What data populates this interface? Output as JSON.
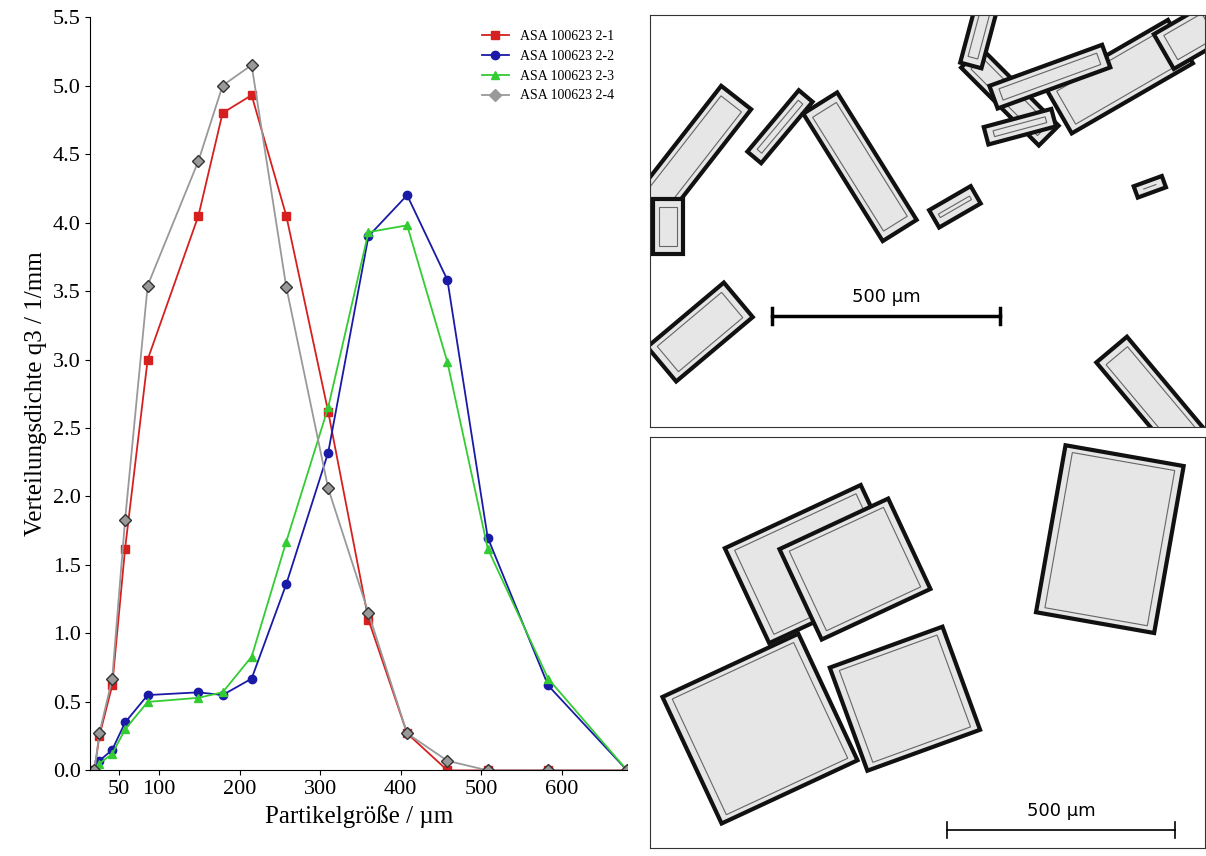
{
  "chart_data": {
    "type": "line",
    "x_label": "Partikelgröße / µm",
    "y_label": "Verteilungsdichte q3 / 1/mm",
    "x": [
      20,
      26,
      42,
      58,
      86,
      149,
      179,
      215,
      258,
      310,
      360,
      408,
      458,
      508,
      583,
      681
    ],
    "series": [
      {
        "name": "ASA 100623 2-1",
        "color": "#d62020",
        "marker": "square",
        "values": [
          0.0,
          0.25,
          0.62,
          1.62,
          3.0,
          4.05,
          4.8,
          4.93,
          4.05,
          2.62,
          1.1,
          0.27,
          0.0,
          0.0,
          0.0,
          0.0
        ]
      },
      {
        "name": "ASA 100623 2-2",
        "color": "#1a1aa6",
        "marker": "circle",
        "values": [
          0.0,
          0.07,
          0.15,
          0.35,
          0.55,
          0.57,
          0.55,
          0.67,
          1.36,
          2.32,
          3.9,
          4.2,
          3.58,
          1.7,
          0.62,
          0.0
        ]
      },
      {
        "name": "ASA 100623 2-3",
        "color": "#33cc33",
        "marker": "triangle",
        "values": [
          0.0,
          0.05,
          0.12,
          0.3,
          0.5,
          0.53,
          0.57,
          0.83,
          1.67,
          2.65,
          3.93,
          3.98,
          2.98,
          1.62,
          0.67,
          0.0
        ]
      },
      {
        "name": "ASA 100623 2-4",
        "color": "#999999",
        "marker": "diamond",
        "values": [
          0.0,
          0.27,
          0.67,
          1.83,
          3.54,
          4.45,
          5.0,
          5.15,
          3.53,
          2.06,
          1.15,
          0.27,
          0.07,
          0.0,
          0.0,
          0.0
        ]
      }
    ],
    "xlim": [
      15,
      681
    ],
    "xticks": [
      50,
      100,
      200,
      300,
      400,
      500,
      600
    ],
    "ylim": [
      0.0,
      5.5
    ],
    "yticks": [
      0.0,
      0.5,
      1.0,
      1.5,
      2.0,
      2.5,
      3.0,
      3.5,
      4.0,
      4.5,
      5.0,
      5.5
    ],
    "grid": false,
    "legend": "upper right"
  },
  "micrographs": [
    {
      "scale_bar": "500 µm"
    },
    {
      "scale_bar": "500 µm"
    }
  ]
}
